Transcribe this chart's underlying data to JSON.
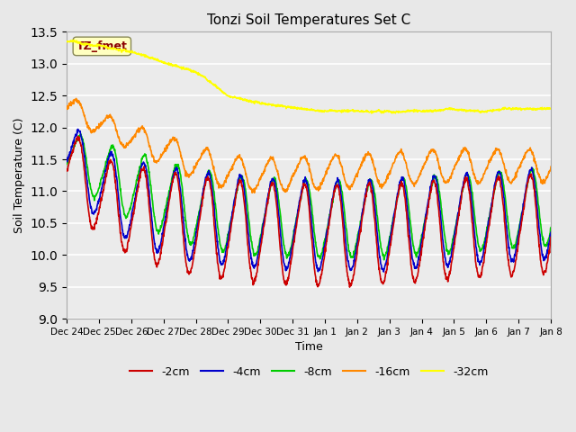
{
  "title": "Tonzi Soil Temperatures Set C",
  "xlabel": "Time",
  "ylabel": "Soil Temperature (C)",
  "ylim": [
    9.0,
    13.5
  ],
  "yticks": [
    9.0,
    9.5,
    10.0,
    10.5,
    11.0,
    11.5,
    12.0,
    12.5,
    13.0,
    13.5
  ],
  "xtick_labels": [
    "Dec 24",
    "Dec 25",
    "Dec 26",
    "Dec 27",
    "Dec 28",
    "Dec 29",
    "Dec 30",
    "Dec 31",
    "Jan 1",
    "Jan 2",
    "Jan 3",
    "Jan 4",
    "Jan 5",
    "Jan 6",
    "Jan 7",
    "Jan 8"
  ],
  "annotation_text": "TZ_fmet",
  "annotation_color": "#8B0000",
  "annotation_bg": "#FFFFC0",
  "colors": {
    "-2cm": "#CC0000",
    "-4cm": "#0000CC",
    "-8cm": "#00CC00",
    "-16cm": "#FF8800",
    "-32cm": "#FFFF00"
  },
  "bg_color": "#E8E8E8",
  "plot_bg": "#EBEBEB",
  "n_points": 1440,
  "total_days": 15
}
